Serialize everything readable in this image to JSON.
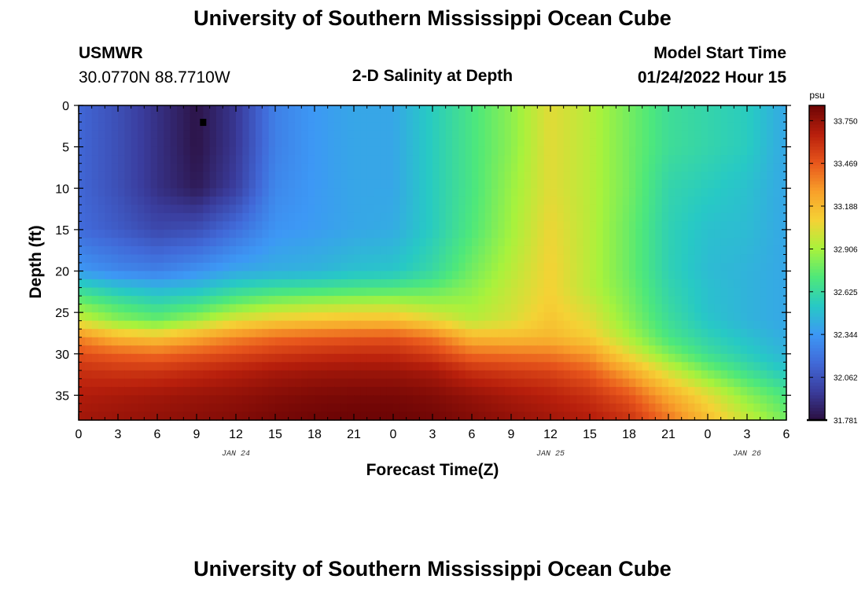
{
  "page": {
    "title_top": "University of Southern Mississippi Ocean Cube",
    "title_bottom": "University of Southern Mississippi Ocean Cube",
    "station_id": "USMWR",
    "station_coords": "30.0770N  88.7710W",
    "plot_title": "2-D Salinity at Depth",
    "start_label": "Model Start Time",
    "start_value": "01/24/2022 Hour 15"
  },
  "colors": {
    "axis": "#000000",
    "marker": "#000000",
    "colormap": [
      "#2b0f3f",
      "#3a3c9c",
      "#4169d8",
      "#3d98f5",
      "#27c9c5",
      "#4ee87a",
      "#a8f23c",
      "#f5d235",
      "#f8a02a",
      "#e8561c",
      "#b81f0c",
      "#6e0505"
    ]
  },
  "chart_data": {
    "type": "heatmap",
    "title": "2-D Salinity at Depth",
    "xlabel": "Forecast Time(Z)",
    "ylabel": "Depth (ft)",
    "x_range_hours": [
      0,
      54
    ],
    "x_tick_labels": [
      "0",
      "3",
      "6",
      "9",
      "12",
      "15",
      "18",
      "21",
      "0",
      "3",
      "6",
      "9",
      "12",
      "15",
      "18",
      "21",
      "0",
      "3",
      "6"
    ],
    "x_tick_hours": [
      0,
      3,
      6,
      9,
      12,
      15,
      18,
      21,
      24,
      27,
      30,
      33,
      36,
      39,
      42,
      45,
      48,
      51,
      54
    ],
    "date_labels": [
      {
        "label": "JAN 24",
        "hour": 12
      },
      {
        "label": "JAN 25",
        "hour": 36
      },
      {
        "label": "JAN 26",
        "hour": 51
      }
    ],
    "y_range_ft": [
      0,
      38
    ],
    "y_tick_labels": [
      "0",
      "5",
      "10",
      "15",
      "20",
      "25",
      "30",
      "35"
    ],
    "y_tick_values": [
      0,
      5,
      10,
      15,
      20,
      25,
      30,
      35
    ],
    "colorbar": {
      "unit": "psu",
      "min": 31.781,
      "max": 33.85,
      "tick_labels": [
        "33.750",
        "33.469",
        "33.188",
        "32.906",
        "32.625",
        "32.344",
        "32.062",
        "31.781"
      ],
      "tick_values": [
        33.75,
        33.469,
        33.188,
        32.906,
        32.625,
        32.344,
        32.062,
        31.781
      ]
    },
    "marker": {
      "hour": 9.5,
      "depth_ft": 2
    },
    "salinity_field": {
      "description": "salinity (psu) by forecast hour (columns) and depth ft (rows)",
      "hours": [
        0,
        3,
        6,
        9,
        12,
        15,
        18,
        21,
        24,
        27,
        30,
        33,
        36,
        39,
        42,
        45,
        48,
        51,
        54
      ],
      "depths_ft": [
        0,
        5,
        10,
        15,
        20,
        22,
        24,
        26,
        28,
        30,
        32,
        35,
        38
      ],
      "values": [
        [
          32.15,
          32.05,
          31.92,
          31.8,
          31.95,
          32.25,
          32.35,
          32.4,
          32.4,
          32.55,
          32.7,
          32.85,
          33.05,
          32.95,
          32.8,
          32.65,
          32.6,
          32.55,
          32.4
        ],
        [
          32.15,
          32.05,
          31.92,
          31.8,
          31.95,
          32.25,
          32.35,
          32.4,
          32.4,
          32.55,
          32.7,
          32.85,
          33.05,
          32.95,
          32.8,
          32.65,
          32.6,
          32.55,
          32.4
        ],
        [
          32.15,
          32.05,
          31.92,
          31.83,
          31.98,
          32.28,
          32.35,
          32.4,
          32.4,
          32.55,
          32.7,
          32.88,
          33.05,
          32.95,
          32.8,
          32.6,
          32.55,
          32.5,
          32.4
        ],
        [
          32.17,
          32.1,
          32.02,
          32.05,
          32.18,
          32.33,
          32.36,
          32.4,
          32.42,
          32.55,
          32.72,
          32.9,
          33.08,
          32.95,
          32.78,
          32.58,
          32.5,
          32.48,
          32.4
        ],
        [
          32.35,
          32.28,
          32.25,
          32.32,
          32.4,
          32.43,
          32.45,
          32.5,
          32.52,
          32.62,
          32.8,
          32.95,
          33.1,
          32.95,
          32.78,
          32.58,
          32.48,
          32.45,
          32.4
        ],
        [
          32.6,
          32.5,
          32.45,
          32.48,
          32.58,
          32.63,
          32.65,
          32.68,
          32.7,
          32.75,
          32.85,
          32.98,
          33.1,
          32.95,
          32.8,
          32.6,
          32.5,
          32.45,
          32.4
        ],
        [
          32.82,
          32.7,
          32.62,
          32.68,
          32.8,
          32.88,
          32.92,
          32.94,
          32.95,
          32.9,
          32.9,
          33.0,
          33.12,
          33.0,
          32.82,
          32.62,
          32.5,
          32.45,
          32.4
        ],
        [
          33.0,
          32.85,
          32.78,
          32.9,
          33.05,
          33.12,
          33.15,
          33.18,
          33.18,
          33.08,
          32.95,
          33.03,
          33.15,
          33.05,
          32.85,
          32.65,
          32.52,
          32.45,
          32.4
        ],
        [
          33.35,
          33.2,
          33.15,
          33.25,
          33.35,
          33.42,
          33.45,
          33.47,
          33.48,
          33.4,
          33.2,
          33.18,
          33.2,
          33.12,
          32.92,
          32.7,
          32.58,
          32.5,
          32.42
        ],
        [
          33.5,
          33.45,
          33.42,
          33.47,
          33.52,
          33.57,
          33.6,
          33.62,
          33.62,
          33.55,
          33.42,
          33.4,
          33.38,
          33.3,
          33.05,
          32.82,
          32.65,
          32.55,
          32.45
        ],
        [
          33.6,
          33.58,
          33.58,
          33.62,
          33.66,
          33.7,
          33.72,
          33.73,
          33.73,
          33.7,
          33.6,
          33.56,
          33.53,
          33.45,
          33.25,
          33.0,
          32.8,
          32.65,
          32.52
        ],
        [
          33.68,
          33.7,
          33.72,
          33.74,
          33.76,
          33.79,
          33.81,
          33.82,
          33.82,
          33.8,
          33.75,
          33.7,
          33.66,
          33.6,
          33.48,
          33.25,
          33.05,
          32.85,
          32.7
        ],
        [
          33.72,
          33.74,
          33.76,
          33.78,
          33.8,
          33.83,
          33.85,
          33.86,
          33.86,
          33.84,
          33.8,
          33.76,
          33.72,
          33.68,
          33.6,
          33.4,
          33.18,
          32.98,
          32.8
        ]
      ]
    }
  }
}
